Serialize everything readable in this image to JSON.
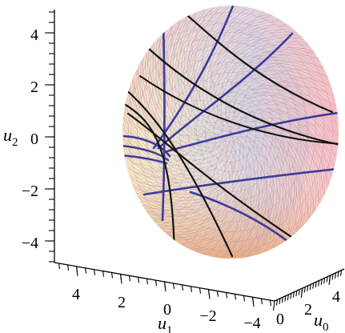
{
  "chart_data": {
    "type": "surface-3d",
    "title": "",
    "axes": {
      "u2": {
        "label": "u",
        "subscript": "2",
        "range": [
          -5,
          5
        ],
        "ticks": [
          {
            "value": 4,
            "label": "4"
          },
          {
            "value": 2,
            "label": "2"
          },
          {
            "value": 0,
            "label": "0"
          },
          {
            "value": -2,
            "label": "−2"
          },
          {
            "value": -4,
            "label": "−4"
          }
        ]
      },
      "u1": {
        "label": "u",
        "subscript": "1",
        "range": [
          -5,
          5
        ],
        "ticks": [
          {
            "value": 4,
            "label": "4"
          },
          {
            "value": 2,
            "label": "2"
          },
          {
            "value": 0,
            "label": "0"
          },
          {
            "value": -2,
            "label": "−2"
          },
          {
            "value": -4,
            "label": "−4"
          }
        ]
      },
      "u0": {
        "label": "u",
        "subscript": "0",
        "range": [
          0,
          5
        ],
        "ticks": [
          {
            "value": 0,
            "label": "0"
          },
          {
            "value": 2,
            "label": "2"
          },
          {
            "value": 4,
            "label": "4"
          }
        ]
      }
    },
    "surface": {
      "shape": "disk",
      "mesh": "triangulated",
      "colormap": [
        "#f2e07a",
        "#c8c8b4",
        "#a8b0c8",
        "#e0a0c8",
        "#f08080",
        "#f0a860"
      ]
    },
    "curve_families": [
      {
        "color": "#3a3a9a",
        "count": 7
      },
      {
        "color": "#111111",
        "count": 6
      }
    ]
  }
}
